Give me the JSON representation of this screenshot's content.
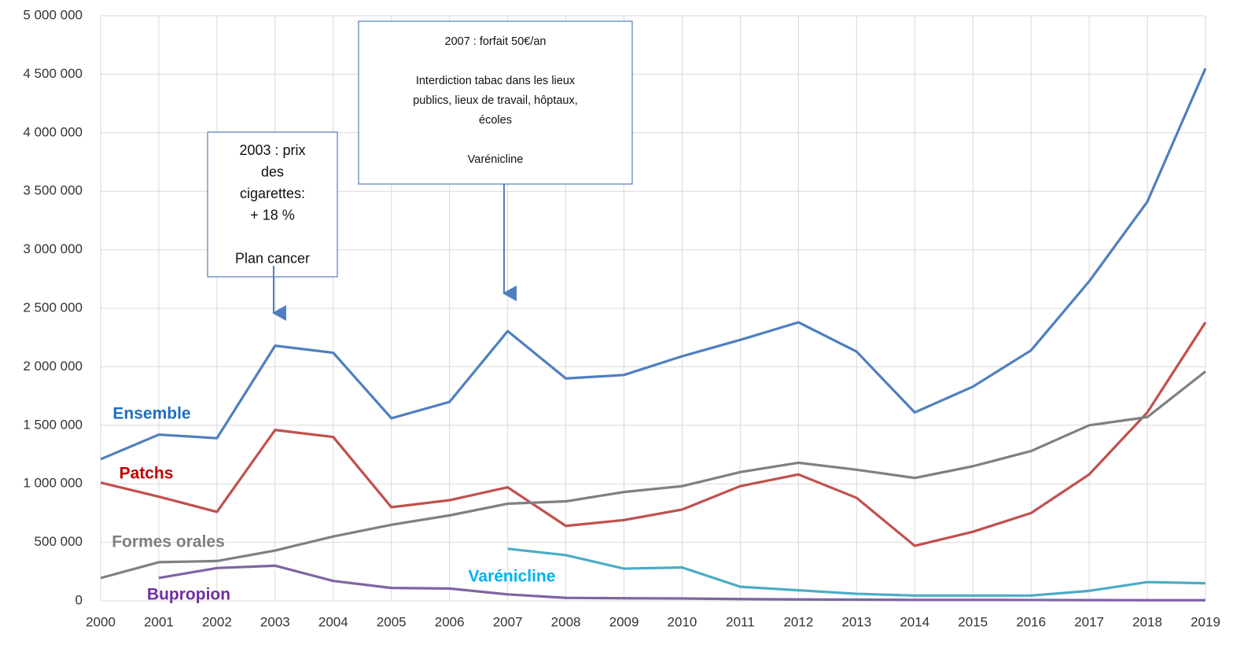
{
  "chart_data": {
    "type": "line",
    "categories": [
      "2000",
      "2001",
      "2002",
      "2003",
      "2004",
      "2005",
      "2006",
      "2007",
      "2008",
      "2009",
      "2010",
      "2011",
      "2012",
      "2013",
      "2014",
      "2015",
      "2016",
      "2017",
      "2018",
      "2019"
    ],
    "series": [
      {
        "name": "Ensemble",
        "color": "#4f7fbf",
        "label_color": "#1f6fbf",
        "values": [
          1210000,
          1420000,
          1390000,
          2180000,
          2120000,
          1560000,
          1700000,
          2305000,
          1900000,
          1930000,
          2090000,
          2230000,
          2380000,
          2130000,
          1610000,
          1830000,
          2140000,
          2730000,
          3410000,
          4550000
        ]
      },
      {
        "name": "Patchs",
        "color": "#c0504d",
        "label_color": "#c00000",
        "values": [
          1010000,
          890000,
          760000,
          1460000,
          1400000,
          800000,
          860000,
          970000,
          640000,
          690000,
          780000,
          980000,
          1080000,
          880000,
          470000,
          590000,
          750000,
          1080000,
          1610000,
          2380000
        ]
      },
      {
        "name": "Formes orales",
        "color": "#808080",
        "label_color": "#7f7f7f",
        "values": [
          195000,
          330000,
          340000,
          430000,
          550000,
          650000,
          730000,
          830000,
          850000,
          930000,
          980000,
          1100000,
          1180000,
          1120000,
          1050000,
          1150000,
          1280000,
          1500000,
          1570000,
          1960000
        ]
      },
      {
        "name": "Varénicline",
        "color": "#4bacc6",
        "label_color": "#00b0f0",
        "values": [
          null,
          null,
          null,
          null,
          null,
          null,
          null,
          445000,
          390000,
          275000,
          285000,
          120000,
          90000,
          60000,
          45000,
          45000,
          45000,
          85000,
          160000,
          150000
        ]
      },
      {
        "name": "Bupropion",
        "color": "#8064a2",
        "label_color": "#7030a0",
        "values": [
          null,
          195000,
          280000,
          300000,
          170000,
          110000,
          105000,
          55000,
          25000,
          22000,
          20000,
          15000,
          12000,
          10000,
          8000,
          8000,
          7000,
          6000,
          5000,
          5000
        ]
      }
    ],
    "ylim": [
      0,
      5000000
    ],
    "yticks": [
      0,
      {
        "value": 500000,
        "label": "500 000"
      },
      {
        "value": 1000000,
        "label": "1 000 000"
      },
      {
        "value": 1500000,
        "label": "1 500 000"
      },
      {
        "value": 2000000,
        "label": "2 000 000"
      },
      {
        "value": 2500000,
        "label": "2 500 000"
      },
      {
        "value": 3000000,
        "label": "3 000 000"
      },
      {
        "value": 3500000,
        "label": "3 500 000"
      },
      {
        "value": 4000000,
        "label": "4 000 000"
      },
      {
        "value": 4500000,
        "label": "4 500 000"
      },
      {
        "value": 5000000,
        "label": "5 000 000"
      }
    ],
    "grid": true,
    "annotations": [
      {
        "lines": [
          "2003 : prix",
          "des",
          "cigarettes:",
          "+ 18 %",
          "",
          "Plan cancer"
        ]
      },
      {
        "lines": [
          "2007 : forfait  50€/an",
          "",
          "Interdiction tabac dans les lieux",
          "publics, lieux de travail, hôptaux,",
          "écoles",
          "",
          "Varénicline"
        ]
      }
    ]
  }
}
